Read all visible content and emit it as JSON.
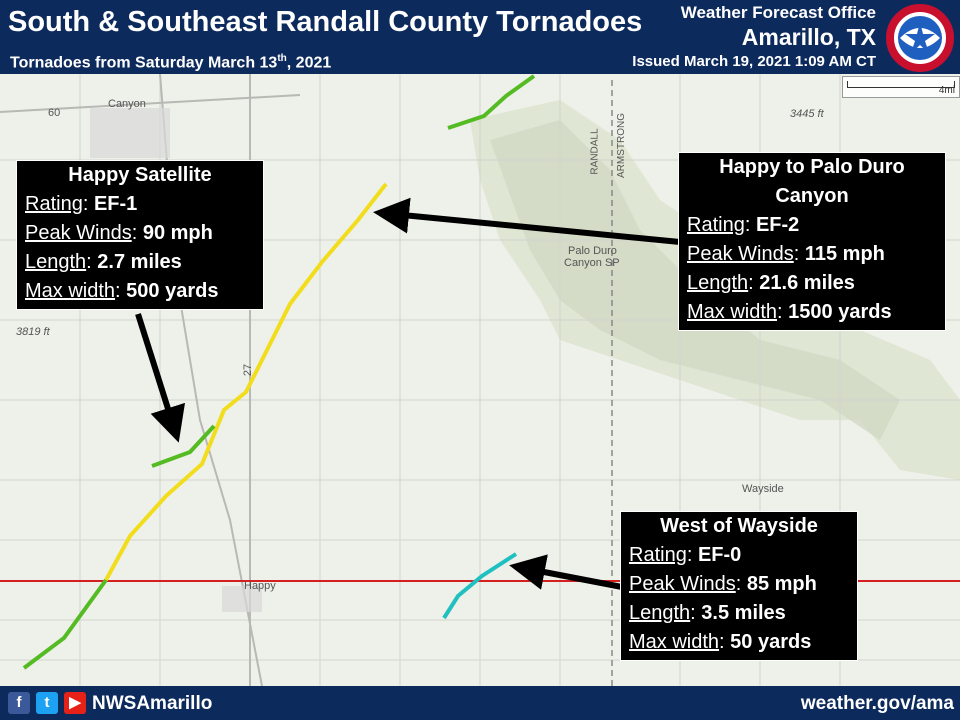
{
  "header": {
    "title": "South & Southeast Randall County Tornadoes",
    "subtitle_main": "Tornadoes from Saturday March 13",
    "subtitle_sup": "th",
    "subtitle_tail": ", 2021",
    "office": "Weather Forecast Office",
    "city": "Amarillo, TX",
    "issued": "Issued March 19, 2021 1:09 AM CT"
  },
  "map": {
    "scale_label": "4mi",
    "places": {
      "canyon": "Canyon",
      "happy": "Happy",
      "wayside": "Wayside",
      "palo_duro": "Palo Duro",
      "canyon_sp": "Canyon SP",
      "randall": "RANDALL",
      "armstrong": "ARMSTRONG",
      "elev_3445": "3445 ft",
      "elev_3819": "3819 ft",
      "road_27": "27",
      "road_60": "60"
    },
    "colors": {
      "ef0": "#20c0c0",
      "ef1": "#55bb22",
      "ef2": "#f2dd1c",
      "county_line": "#d42020",
      "header": "#0d2a5c"
    }
  },
  "tornadoes": [
    {
      "name": "Happy Satellite",
      "rating_label": "Rating",
      "rating": "EF-1",
      "winds_label": "Peak Winds",
      "winds": "90 mph",
      "length_label": "Length",
      "length": "2.7 miles",
      "width_label": "Max width",
      "width": "500 yards"
    },
    {
      "name": "Happy to Palo Duro Canyon",
      "rating_label": "Rating",
      "rating": "EF-2",
      "winds_label": "Peak Winds",
      "winds": "115 mph",
      "length_label": "Length",
      "length": "21.6 miles",
      "width_label": "Max width",
      "width": "1500 yards"
    },
    {
      "name": "West of Wayside",
      "rating_label": "Rating",
      "rating": "EF-0",
      "winds_label": "Peak Winds",
      "winds": "85 mph",
      "length_label": "Length",
      "length": "3.5 miles",
      "width_label": "Max width",
      "width": "50 yards"
    }
  ],
  "footer": {
    "handle": "NWSAmarillo",
    "url": "weather.gov/ama"
  }
}
